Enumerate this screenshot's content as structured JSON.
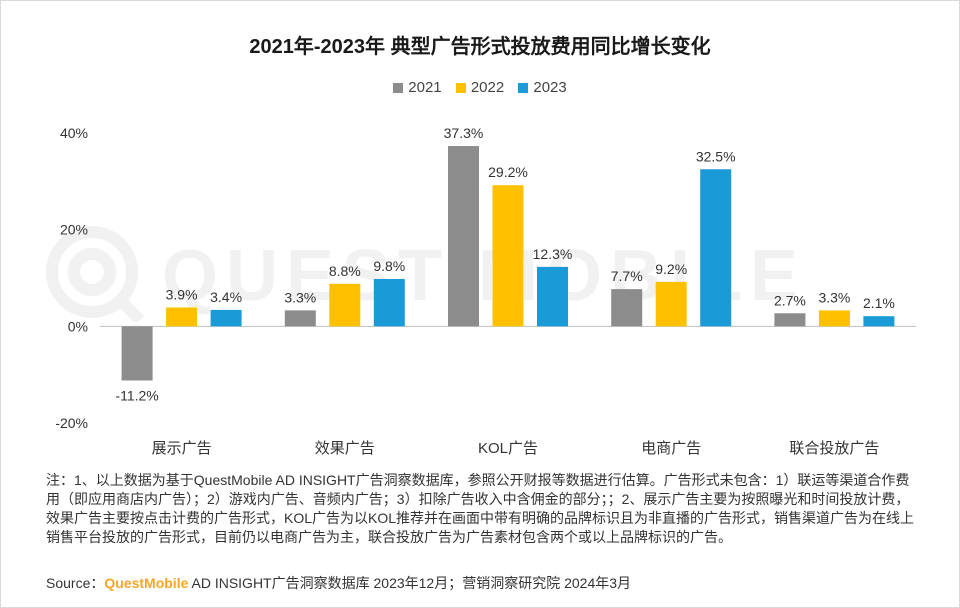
{
  "watermark": {
    "text": "QUEST MOBILE"
  },
  "chart_data": {
    "type": "bar",
    "title": "2021年-2023年 典型广告形式投放费用同比增长变化",
    "categories": [
      "展示广告",
      "效果广告",
      "KOL广告",
      "电商广告",
      "联合投放广告"
    ],
    "series": [
      {
        "name": "2021",
        "values": [
          -11.2,
          3.3,
          37.3,
          7.7,
          2.7
        ],
        "labels": [
          "-11.2%",
          "3.3%",
          "37.3%",
          "7.7%",
          "2.7%"
        ]
      },
      {
        "name": "2022",
        "values": [
          3.9,
          8.8,
          29.2,
          9.2,
          3.3
        ],
        "labels": [
          "3.9%",
          "8.8%",
          "29.2%",
          "9.2%",
          "3.3%"
        ]
      },
      {
        "name": "2023",
        "values": [
          3.4,
          9.8,
          12.3,
          32.5,
          2.1
        ],
        "labels": [
          "3.4%",
          "9.8%",
          "12.3%",
          "32.5%",
          "2.1%"
        ]
      }
    ],
    "colors": [
      "#8c8c8c",
      "#ffc000",
      "#1a9ad6"
    ],
    "ylim": [
      -20,
      40
    ],
    "yticks": [
      -20,
      0,
      20,
      40
    ],
    "ytick_labels": [
      "-20%",
      "0%",
      "20%",
      "40%"
    ],
    "xlabel": "",
    "ylabel": "",
    "grid": false,
    "legend_position": "top-center"
  },
  "footer": {
    "note": "注：1、以上数据为基于QuestMobile AD INSIGHT广告洞察数据库，参照公开财报等数据进行估算。广告形式未包含：1）联运等渠道合作费用（即应用商店内广告）；2）游戏内广告、音频内广告；3）扣除广告收入中含佣金的部分；；2、展示广告主要为按照曝光和时间投放计费，效果广告主要按点击计费的广告形式，KOL广告为以KOL推荐并在画面中带有明确的品牌标识且为非直播的广告形式，销售渠道广告为在线上销售平台投放的广告形式，目前仍以电商广告为主，联合投放广告为广告素材包含两个或以上品牌标识的广告。",
    "source_label": "Source：",
    "source_brand": "QuestMobile",
    "source_rest": " AD INSIGHT广告洞察数据库 2023年12月；营销洞察研究院 2024年3月"
  }
}
